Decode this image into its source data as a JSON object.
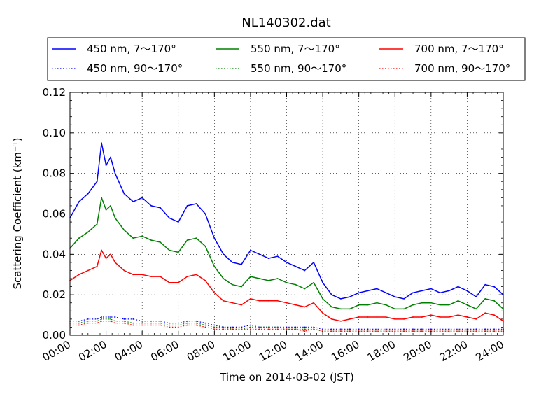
{
  "chart_data": {
    "type": "line",
    "title": "NL140302.dat",
    "xlabel": "Time on 2014-03-02 (JST)",
    "ylabel": "Scattering Coefficient (km",
    "ylabel_sup": "−1",
    "ylabel_end": ")",
    "xlim": [
      "00:00",
      "24:00"
    ],
    "ylim": [
      0.0,
      0.12
    ],
    "x_ticks": [
      "00:00",
      "02:00",
      "04:00",
      "06:00",
      "08:00",
      "10:00",
      "12:00",
      "14:00",
      "16:00",
      "18:00",
      "20:00",
      "22:00",
      "24:00"
    ],
    "y_ticks": [
      "0.00",
      "0.02",
      "0.04",
      "0.06",
      "0.08",
      "0.10",
      "0.12"
    ],
    "grid": true,
    "legend_placement": "top, above plot, 3 columns",
    "x_hours": [
      0,
      0.5,
      1,
      1.5,
      1.75,
      2,
      2.25,
      2.5,
      3,
      3.5,
      4,
      4.5,
      5,
      5.5,
      6,
      6.5,
      7,
      7.5,
      8,
      8.5,
      9,
      9.5,
      10,
      10.5,
      11,
      11.5,
      12,
      12.5,
      13,
      13.5,
      14,
      14.5,
      15,
      15.5,
      16,
      16.5,
      17,
      17.5,
      18,
      18.5,
      19,
      19.5,
      20,
      20.5,
      21,
      21.5,
      22,
      22.5,
      23,
      23.5,
      24
    ],
    "series": [
      {
        "name": "450 nm, 7～170°",
        "color": "#0000ff",
        "style": "solid",
        "values": [
          0.058,
          0.066,
          0.07,
          0.076,
          0.095,
          0.084,
          0.088,
          0.08,
          0.07,
          0.066,
          0.068,
          0.064,
          0.063,
          0.058,
          0.056,
          0.064,
          0.065,
          0.06,
          0.048,
          0.04,
          0.036,
          0.035,
          0.042,
          0.04,
          0.038,
          0.039,
          0.036,
          0.034,
          0.032,
          0.036,
          0.026,
          0.02,
          0.018,
          0.019,
          0.021,
          0.022,
          0.023,
          0.021,
          0.019,
          0.018,
          0.021,
          0.022,
          0.023,
          0.021,
          0.022,
          0.024,
          0.022,
          0.019,
          0.025,
          0.024,
          0.02
        ]
      },
      {
        "name": "550 nm, 7～170°",
        "color": "#008000",
        "style": "solid",
        "values": [
          0.043,
          0.048,
          0.051,
          0.055,
          0.068,
          0.062,
          0.064,
          0.058,
          0.052,
          0.048,
          0.049,
          0.047,
          0.046,
          0.042,
          0.041,
          0.047,
          0.048,
          0.044,
          0.034,
          0.028,
          0.025,
          0.024,
          0.029,
          0.028,
          0.027,
          0.028,
          0.026,
          0.025,
          0.023,
          0.026,
          0.018,
          0.014,
          0.013,
          0.013,
          0.015,
          0.015,
          0.016,
          0.015,
          0.013,
          0.013,
          0.015,
          0.016,
          0.016,
          0.015,
          0.015,
          0.017,
          0.015,
          0.013,
          0.018,
          0.017,
          0.013
        ]
      },
      {
        "name": "700 nm, 7～170°",
        "color": "#ff0000",
        "style": "solid",
        "values": [
          0.027,
          0.03,
          0.032,
          0.034,
          0.042,
          0.038,
          0.04,
          0.036,
          0.032,
          0.03,
          0.03,
          0.029,
          0.029,
          0.026,
          0.026,
          0.029,
          0.03,
          0.027,
          0.021,
          0.017,
          0.016,
          0.015,
          0.018,
          0.017,
          0.017,
          0.017,
          0.016,
          0.015,
          0.014,
          0.016,
          0.011,
          0.008,
          0.007,
          0.008,
          0.009,
          0.009,
          0.009,
          0.009,
          0.008,
          0.008,
          0.009,
          0.009,
          0.01,
          0.009,
          0.009,
          0.01,
          0.009,
          0.008,
          0.011,
          0.01,
          0.007
        ]
      },
      {
        "name": "450 nm, 90～170°",
        "color": "#0000ff",
        "style": "dotted",
        "values": [
          0.007,
          0.007,
          0.008,
          0.008,
          0.009,
          0.009,
          0.009,
          0.009,
          0.008,
          0.008,
          0.007,
          0.007,
          0.007,
          0.006,
          0.006,
          0.007,
          0.007,
          0.006,
          0.005,
          0.004,
          0.004,
          0.004,
          0.005,
          0.004,
          0.004,
          0.004,
          0.004,
          0.004,
          0.004,
          0.004,
          0.003,
          0.003,
          0.003,
          0.003,
          0.003,
          0.003,
          0.003,
          0.003,
          0.003,
          0.003,
          0.003,
          0.003,
          0.003,
          0.003,
          0.003,
          0.003,
          0.003,
          0.003,
          0.003,
          0.003,
          0.003
        ]
      },
      {
        "name": "550 nm, 90～170°",
        "color": "#008000",
        "style": "dotted",
        "values": [
          0.006,
          0.006,
          0.007,
          0.007,
          0.008,
          0.008,
          0.008,
          0.007,
          0.007,
          0.006,
          0.006,
          0.006,
          0.006,
          0.005,
          0.005,
          0.006,
          0.006,
          0.005,
          0.004,
          0.004,
          0.003,
          0.003,
          0.004,
          0.004,
          0.004,
          0.004,
          0.003,
          0.003,
          0.003,
          0.003,
          0.002,
          0.002,
          0.002,
          0.002,
          0.002,
          0.002,
          0.002,
          0.002,
          0.002,
          0.002,
          0.002,
          0.002,
          0.002,
          0.002,
          0.002,
          0.002,
          0.002,
          0.002,
          0.002,
          0.002,
          0.002
        ]
      },
      {
        "name": "700 nm, 90～170°",
        "color": "#ff0000",
        "style": "dotted",
        "values": [
          0.005,
          0.005,
          0.006,
          0.006,
          0.007,
          0.007,
          0.007,
          0.006,
          0.006,
          0.005,
          0.005,
          0.005,
          0.005,
          0.004,
          0.004,
          0.005,
          0.005,
          0.004,
          0.003,
          0.003,
          0.003,
          0.003,
          0.003,
          0.003,
          0.003,
          0.003,
          0.003,
          0.003,
          0.002,
          0.003,
          0.002,
          0.002,
          0.002,
          0.002,
          0.002,
          0.002,
          0.002,
          0.002,
          0.002,
          0.002,
          0.002,
          0.002,
          0.002,
          0.002,
          0.002,
          0.002,
          0.002,
          0.002,
          0.002,
          0.002,
          0.002
        ]
      }
    ]
  }
}
